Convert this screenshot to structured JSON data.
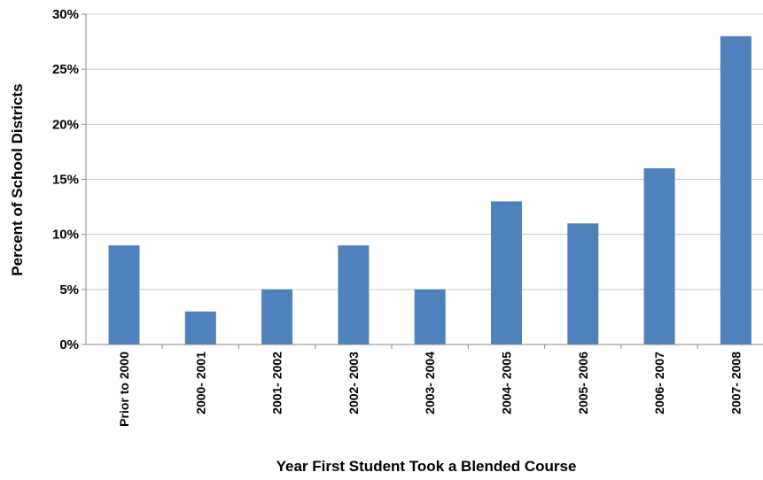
{
  "chart_data": {
    "type": "bar",
    "title": "",
    "xlabel": "Year First Student Took a Blended Course",
    "ylabel": "Percent of School Districts",
    "categories": [
      "Prior to 2000",
      "2000- 2001",
      "2001- 2002",
      "2002- 2003",
      "2003- 2004",
      "2004- 2005",
      "2005- 2006",
      "2006- 2007",
      "2007- 2008"
    ],
    "values": [
      9,
      3,
      5,
      9,
      5,
      13,
      11,
      16,
      28
    ],
    "ylim": [
      0,
      30
    ],
    "yticks": [
      0,
      5,
      10,
      15,
      20,
      25,
      30
    ],
    "ytick_labels": [
      "0%",
      "5%",
      "10%",
      "15%",
      "20%",
      "25%",
      "30%"
    ],
    "grid": true,
    "legend": "none",
    "bar_color": "#4f81bd",
    "grid_color": "#c8c8c8"
  }
}
